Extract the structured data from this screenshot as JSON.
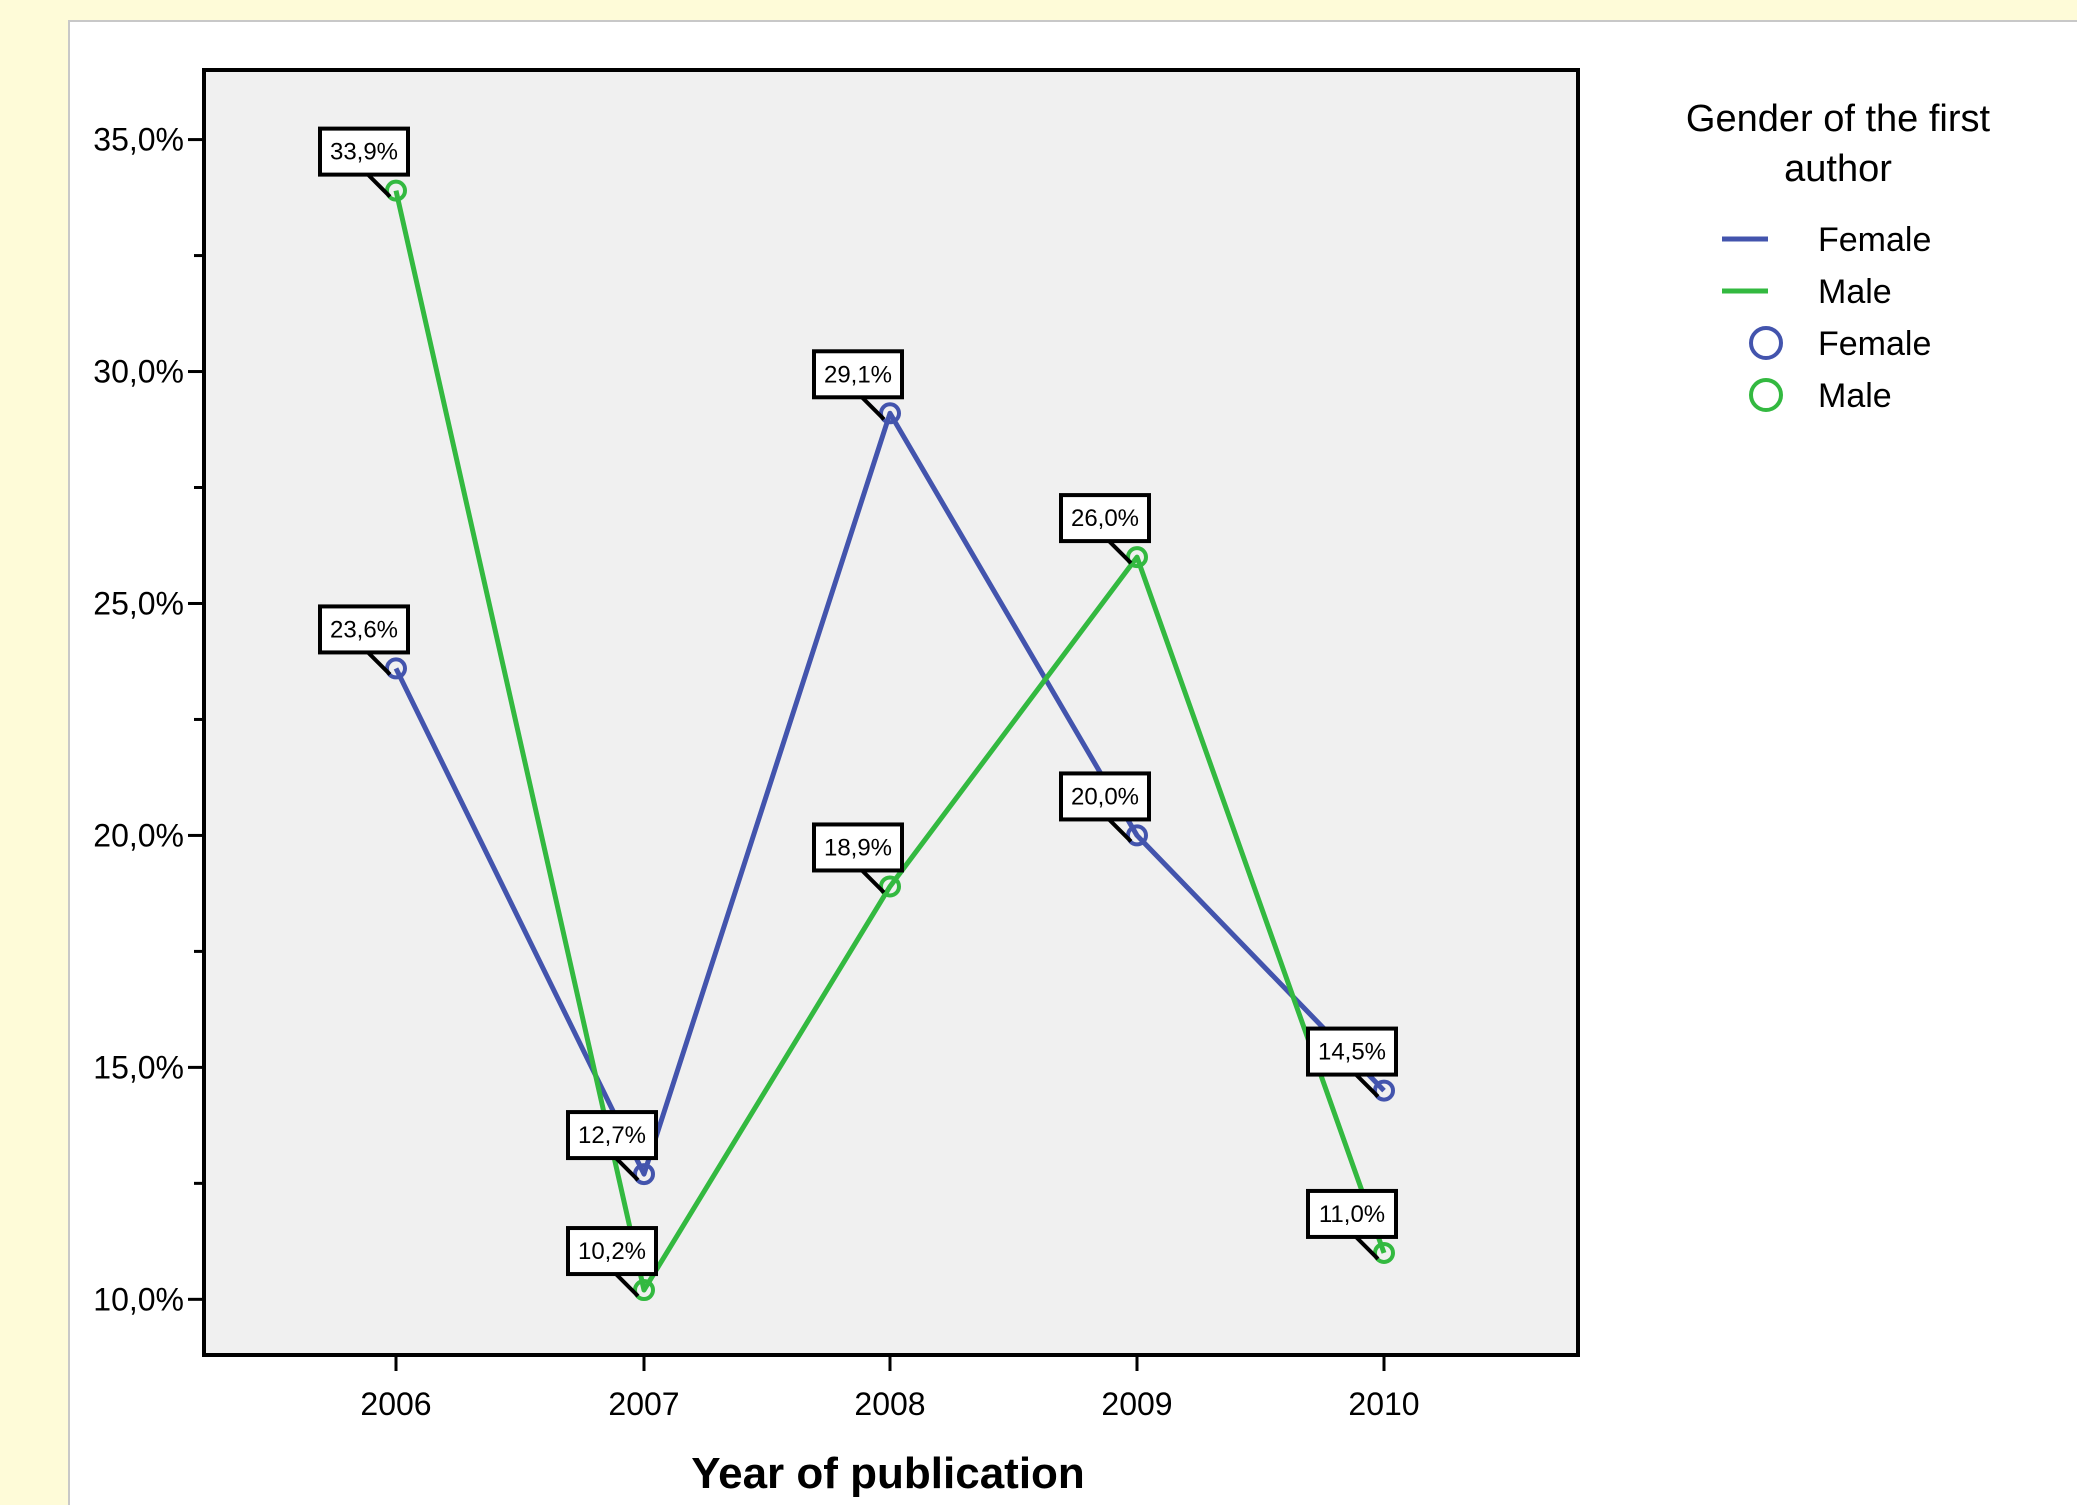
{
  "chart_data": {
    "type": "line",
    "xlabel": "Year of publication",
    "ylabel": "",
    "categories": [
      "2006",
      "2007",
      "2008",
      "2009",
      "2010"
    ],
    "ylim": [
      8.8,
      36.5
    ],
    "yticks": [
      10,
      15,
      20,
      25,
      30,
      35
    ],
    "ytick_labels": [
      "10,0%",
      "15,0%",
      "20,0%",
      "25,0%",
      "30,0%",
      "35,0%"
    ],
    "grid": false,
    "plot_background": "#f0f0f0",
    "legend": {
      "title": "Gender of the first author",
      "title_lines": [
        "Gender of the first",
        "author"
      ],
      "placement": "top-right",
      "line_entries": [
        "Female",
        "Male"
      ],
      "marker_entries": [
        "Female",
        "Male"
      ]
    },
    "series": [
      {
        "name": "Female",
        "color": "#4354ad",
        "values": [
          23.6,
          12.7,
          29.1,
          20.0,
          14.5
        ],
        "labels": [
          "23,6%",
          "12,7%",
          "29,1%",
          "20,0%",
          "14,5%"
        ]
      },
      {
        "name": "Male",
        "color": "#33b940",
        "values": [
          33.9,
          10.2,
          18.9,
          26.0,
          11.0
        ],
        "labels": [
          "33,9%",
          "10,2%",
          "18,9%",
          "26,0%",
          "11,0%"
        ]
      }
    ]
  }
}
